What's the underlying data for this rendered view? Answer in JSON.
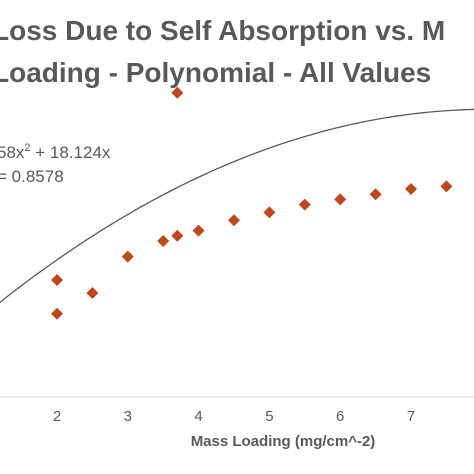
{
  "chart_data": {
    "type": "scatter",
    "title_line1": "Loss Due to Self Absorption vs. M",
    "title_line2": "Loading - Polynomial - All Values",
    "xlabel": "Mass Loading (mg/cm^-2)",
    "ylabel": "",
    "xlim": [
      0.8,
      8.0
    ],
    "x_ticks": [
      2,
      3,
      4,
      5,
      6,
      7
    ],
    "trendline": {
      "type": "polynomial-2",
      "equation_line1": "58x",
      "equation_exp": "2",
      "equation_line1b": " + 18.124x",
      "equation_line2": " = 0.8578"
    },
    "series": [
      {
        "color": "#c0461b",
        "marker": "diamond",
        "points": [
          {
            "x": 2.0,
            "y": 0.62
          },
          {
            "x": 2.0,
            "y": 0.49
          },
          {
            "x": 2.5,
            "y": 0.57
          },
          {
            "x": 3.0,
            "y": 0.71
          },
          {
            "x": 3.5,
            "y": 0.77
          },
          {
            "x": 3.7,
            "y": 0.79
          },
          {
            "x": 3.7,
            "y": 1.34
          },
          {
            "x": 4.0,
            "y": 0.81
          },
          {
            "x": 4.5,
            "y": 0.85
          },
          {
            "x": 5.0,
            "y": 0.88
          },
          {
            "x": 5.5,
            "y": 0.91
          },
          {
            "x": 6.0,
            "y": 0.93
          },
          {
            "x": 6.5,
            "y": 0.95
          },
          {
            "x": 7.0,
            "y": 0.97
          },
          {
            "x": 7.5,
            "y": 0.98
          }
        ]
      }
    ]
  }
}
